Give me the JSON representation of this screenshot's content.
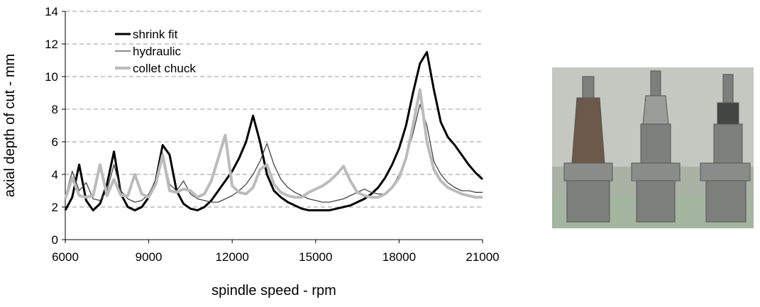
{
  "chart_data": {
    "type": "line",
    "x_label": "spindle speed - rpm",
    "y_label": "axial depth of cut - mm",
    "x": [
      6000,
      6250,
      6500,
      6750,
      7000,
      7250,
      7500,
      7750,
      8000,
      8250,
      8500,
      8750,
      9000,
      9250,
      9500,
      9750,
      10000,
      10250,
      10500,
      10750,
      11000,
      11250,
      11500,
      11750,
      12000,
      12250,
      12500,
      12750,
      13000,
      13250,
      13500,
      13750,
      14000,
      14250,
      14500,
      14750,
      15000,
      15250,
      15500,
      15750,
      16000,
      16250,
      16500,
      16750,
      17000,
      17250,
      17500,
      17750,
      18000,
      18250,
      18500,
      18750,
      19000,
      19250,
      19500,
      19750,
      20000,
      20250,
      20500,
      20750,
      21000
    ],
    "series": [
      {
        "name": "shrink fit",
        "color": "#000000",
        "width": 3,
        "values": [
          1.8,
          2.6,
          4.6,
          2.4,
          1.8,
          2.2,
          3.4,
          5.4,
          2.8,
          2.0,
          1.8,
          2.0,
          2.6,
          3.6,
          5.8,
          5.2,
          3.0,
          2.2,
          1.9,
          1.8,
          2.0,
          2.4,
          3.0,
          3.6,
          4.2,
          5.0,
          6.0,
          7.6,
          6.0,
          4.0,
          3.0,
          2.6,
          2.3,
          2.1,
          1.9,
          1.8,
          1.8,
          1.8,
          1.8,
          1.9,
          2.0,
          2.1,
          2.3,
          2.5,
          2.8,
          3.2,
          3.8,
          4.6,
          5.6,
          7.0,
          9.0,
          10.8,
          11.5,
          9.2,
          7.2,
          6.3,
          5.8,
          5.2,
          4.6,
          4.1,
          3.7
        ]
      },
      {
        "name": "hydraulic",
        "color": "#444444",
        "width": 1.3,
        "values": [
          2.6,
          4.2,
          3.0,
          3.5,
          2.5,
          2.4,
          3.0,
          4.6,
          3.0,
          2.5,
          2.3,
          2.4,
          2.8,
          3.6,
          5.3,
          3.4,
          3.0,
          3.6,
          2.8,
          2.5,
          2.4,
          2.3,
          2.3,
          2.5,
          2.7,
          3.0,
          3.4,
          4.0,
          4.8,
          5.9,
          4.6,
          3.7,
          3.2,
          2.9,
          2.7,
          2.5,
          2.4,
          2.3,
          2.3,
          2.4,
          2.5,
          2.7,
          2.9,
          3.1,
          2.9,
          2.8,
          2.8,
          3.2,
          4.0,
          5.0,
          6.5,
          8.3,
          7.0,
          4.8,
          4.0,
          3.5,
          3.2,
          3.0,
          3.0,
          2.9,
          2.9
        ]
      },
      {
        "name": "collet chuck",
        "color": "#bbbbbb",
        "width": 4,
        "values": [
          2.5,
          3.8,
          2.7,
          2.6,
          2.7,
          4.6,
          2.7,
          3.7,
          2.7,
          2.7,
          4.0,
          2.8,
          2.6,
          3.4,
          5.2,
          3.0,
          2.9,
          3.1,
          3.0,
          2.6,
          2.8,
          3.6,
          5.0,
          6.4,
          3.3,
          2.9,
          2.8,
          3.2,
          4.3,
          4.6,
          3.4,
          2.9,
          2.7,
          2.6,
          2.6,
          2.9,
          3.1,
          3.3,
          3.6,
          4.0,
          4.5,
          3.6,
          2.9,
          2.7,
          2.6,
          2.6,
          2.8,
          3.2,
          3.8,
          5.0,
          7.0,
          9.2,
          6.0,
          4.3,
          3.6,
          3.2,
          3.0,
          2.8,
          2.7,
          2.6,
          2.6
        ]
      }
    ],
    "xlim": [
      6000,
      21000
    ],
    "xticks": [
      6000,
      9000,
      12000,
      15000,
      18000,
      21000
    ],
    "ylim": [
      0,
      14
    ],
    "yticks": [
      0,
      2,
      4,
      6,
      8,
      10,
      12,
      14
    ],
    "grid": true,
    "legend": "upper left"
  }
}
